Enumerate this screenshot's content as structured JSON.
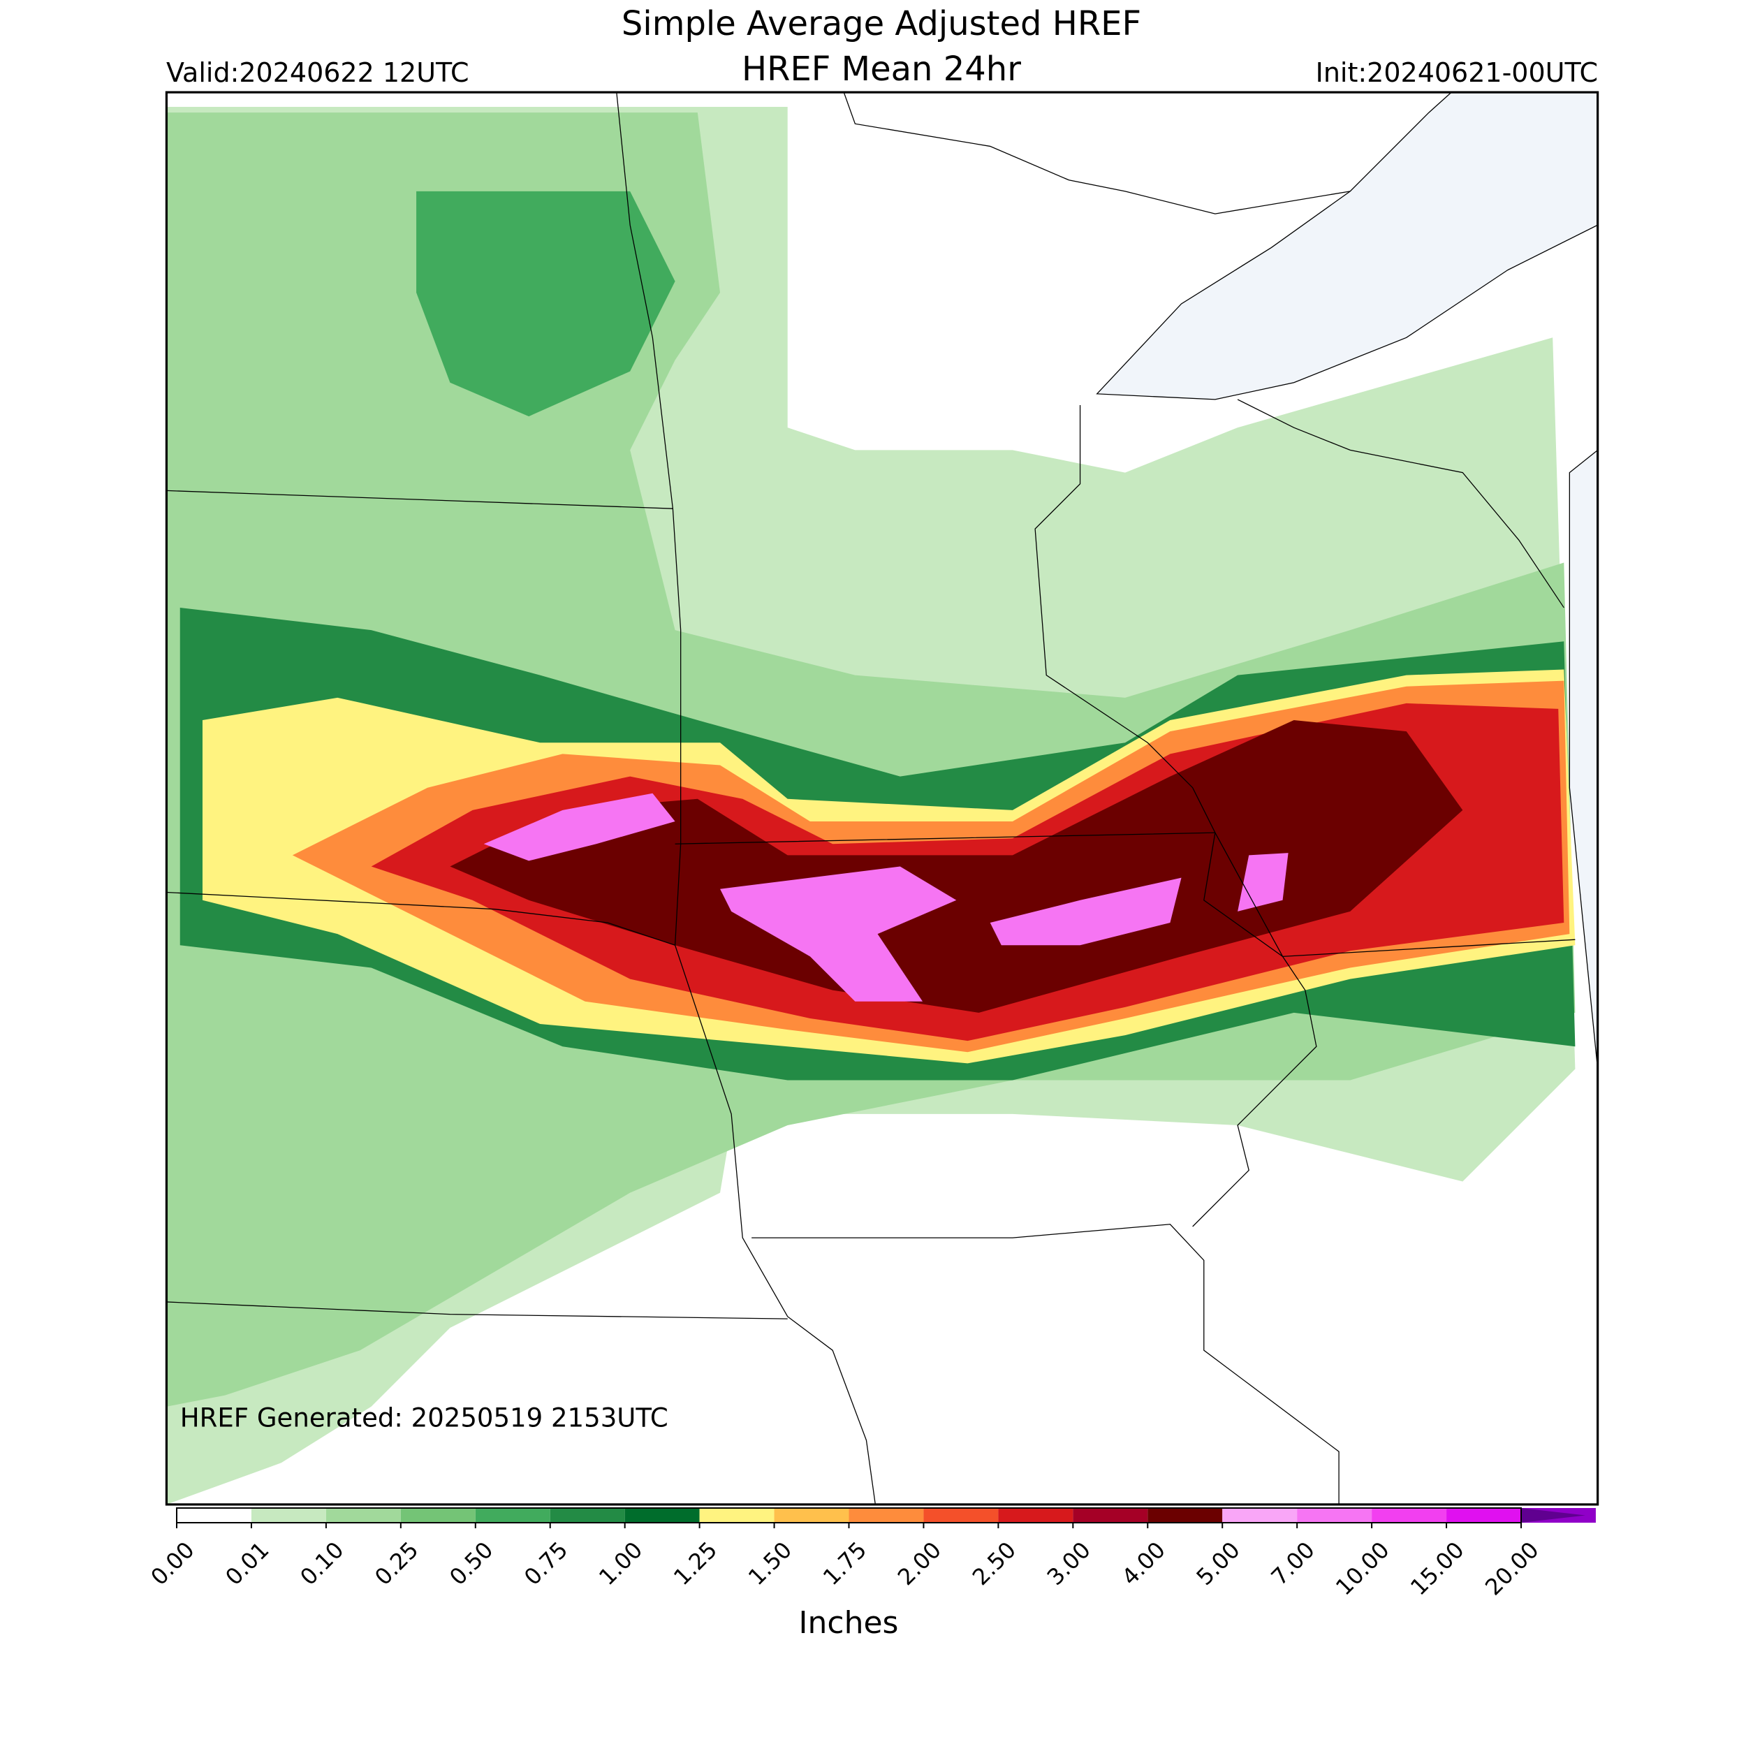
{
  "header": {
    "title": "Simple Average Adjusted HREF",
    "subtitle": "HREF Mean 24hr",
    "valid": "Valid:20240622 12UTC",
    "init": "Init:20240621-00UTC"
  },
  "map": {
    "annotation": "HREF Generated: 20250519 2153UTC"
  },
  "colorbar": {
    "label": "Inches",
    "ticks": [
      {
        "value": 0,
        "label": "0.00"
      },
      {
        "value": 0.01,
        "label": "0.01"
      },
      {
        "value": 0.1,
        "label": "0.10"
      },
      {
        "value": 0.25,
        "label": "0.25"
      },
      {
        "value": 0.5,
        "label": "0.50"
      },
      {
        "value": 0.75,
        "label": "0.75"
      },
      {
        "value": 1,
        "label": "1.00"
      },
      {
        "value": 1.25,
        "label": "1.25"
      },
      {
        "value": 1.5,
        "label": "1.50"
      },
      {
        "value": 1.75,
        "label": "1.75"
      },
      {
        "value": 2,
        "label": "2.00"
      },
      {
        "value": 2.5,
        "label": "2.50"
      },
      {
        "value": 3,
        "label": "3.00"
      },
      {
        "value": 4,
        "label": "4.00"
      },
      {
        "value": 5,
        "label": "5.00"
      },
      {
        "value": 7,
        "label": "7.00"
      },
      {
        "value": 10,
        "label": "10.00"
      },
      {
        "value": 15,
        "label": "15.00"
      },
      {
        "value": 20,
        "label": "20.00"
      }
    ],
    "colors": [
      "#ffffff",
      "#c7e9c0",
      "#a1d99b",
      "#74c476",
      "#41ab5d",
      "#238b45",
      "#006d2c",
      "#fff380",
      "#ffc04c",
      "#fe8c3c",
      "#f4502a",
      "#d7191c",
      "#a50026",
      "#6b0000",
      "#f9a6f7",
      "#f675f3",
      "#f23ff0",
      "#e010f0",
      "#9000c8"
    ],
    "over_color": "#600090"
  }
}
